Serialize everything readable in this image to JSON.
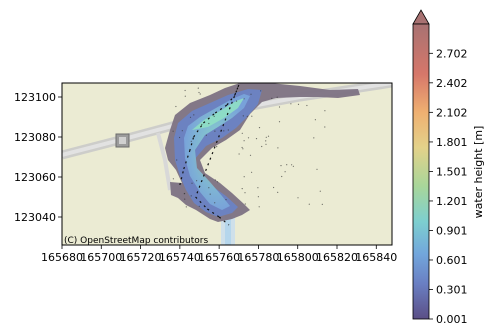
{
  "chart_data": {
    "type": "heatmap",
    "title": "",
    "xlabel": "",
    "ylabel": "",
    "xlim": [
      165680,
      165848
    ],
    "ylim": [
      123026,
      123107
    ],
    "x_ticks": [
      165680,
      165700,
      165720,
      165740,
      165760,
      165780,
      165800,
      165820,
      165840
    ],
    "x_tick_labels": [
      "165680",
      "165700",
      "165720",
      "165740",
      "165760",
      "165780",
      "165800",
      "165820",
      "165840"
    ],
    "y_ticks": [
      123040,
      123060,
      123080,
      123100
    ],
    "y_tick_labels": [
      "123040",
      "123060",
      "123080",
      "123100"
    ],
    "attribution": "(C) OpenStreetMap contributors",
    "colorbar": {
      "label": "water height [m]",
      "min": 0.001,
      "max": 3.0,
      "extend": "max",
      "ticks": [
        0.001,
        0.301,
        0.601,
        0.901,
        1.201,
        1.501,
        1.801,
        2.102,
        2.402,
        2.702
      ],
      "tick_labels": [
        "0.001",
        "0.301",
        "0.601",
        "0.901",
        "1.201",
        "1.501",
        "1.801",
        "2.102",
        "2.402",
        "2.702"
      ]
    },
    "flow_channel_centerline": [
      [
        165740,
        123056
      ],
      [
        165742,
        123064
      ],
      [
        165745,
        123073
      ],
      [
        165747,
        123080
      ],
      [
        165752,
        123087
      ],
      [
        165758,
        123092
      ],
      [
        165764,
        123096
      ],
      [
        165768,
        123101
      ],
      [
        165770,
        123106
      ]
    ],
    "flow_downstream": [
      [
        165742,
        123056
      ],
      [
        165748,
        123050
      ],
      [
        165754,
        123044
      ],
      [
        165760,
        123040
      ],
      [
        165765,
        123036
      ]
    ]
  },
  "colors": {
    "map_background": "#ebebd4",
    "dry_cells": "#7d7283",
    "colormap": [
      "#5e4c87",
      "#6a8fcf",
      "#7dd3c4",
      "#f2c27a",
      "#c7655c",
      "#a06a6a"
    ]
  }
}
